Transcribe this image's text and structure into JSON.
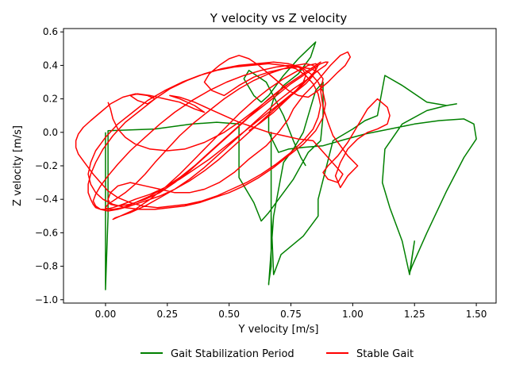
{
  "chart_data": {
    "type": "line",
    "title": "Y velocity vs Z velocity",
    "xlabel": "Y velocity [m/s]",
    "ylabel": "Z velocity [m/s]",
    "xlim": [
      -0.17,
      1.58
    ],
    "ylim": [
      -1.02,
      0.62
    ],
    "xticks": [
      0.0,
      0.25,
      0.5,
      0.75,
      1.0,
      1.25,
      1.5
    ],
    "xtick_labels": [
      "0.00",
      "0.25",
      "0.50",
      "0.75",
      "1.00",
      "1.25",
      "1.50"
    ],
    "yticks": [
      -1.0,
      -0.8,
      -0.6,
      -0.4,
      -0.2,
      0.0,
      0.2,
      0.4,
      0.6
    ],
    "ytick_labels": [
      "−1.0",
      "−0.8",
      "−0.6",
      "−0.4",
      "−0.2",
      "0.0",
      "0.2",
      "0.4",
      "0.6"
    ],
    "grid": false,
    "legend_position": "bottom-center",
    "series": [
      {
        "name": "Gait Stabilization Period",
        "color": "#008000",
        "x": [
          0.0,
          0.0,
          0.0,
          0.01,
          0.01,
          0.01,
          0.2,
          0.35,
          0.45,
          0.54,
          0.54,
          0.6,
          0.63,
          0.66,
          0.7,
          0.76,
          0.82,
          0.87,
          0.88,
          0.88,
          0.85,
          0.82,
          0.8,
          0.76,
          0.72,
          0.68,
          0.66,
          0.66,
          0.67,
          0.67,
          0.67,
          0.68,
          0.71,
          0.8,
          0.86,
          0.86,
          0.92,
          1.0,
          1.05,
          1.1,
          1.13,
          1.2,
          1.3,
          1.38,
          1.42,
          1.38,
          1.3,
          1.2,
          1.13,
          1.12,
          1.15,
          1.2,
          1.23,
          1.25,
          1.23,
          1.24,
          1.3,
          1.38,
          1.45,
          1.5,
          1.49,
          1.45,
          1.35,
          1.25,
          1.15,
          1.05,
          0.95,
          0.88,
          0.8,
          0.74,
          0.7,
          0.66,
          0.66,
          0.68,
          0.72,
          0.78,
          0.83,
          0.85,
          0.78,
          0.72,
          0.66,
          0.63,
          0.6,
          0.56,
          0.58,
          0.65,
          0.72,
          0.76,
          0.79,
          0.81
        ],
        "y": [
          0.0,
          -0.4,
          -0.94,
          -0.5,
          0.0,
          0.01,
          0.02,
          0.05,
          0.06,
          0.05,
          -0.27,
          -0.42,
          -0.53,
          -0.48,
          -0.4,
          -0.28,
          -0.12,
          -0.05,
          0.1,
          0.3,
          0.25,
          0.1,
          0.0,
          -0.1,
          -0.18,
          -0.5,
          -0.91,
          -0.9,
          -0.8,
          0.0,
          -0.5,
          -0.85,
          -0.73,
          -0.62,
          -0.5,
          -0.4,
          -0.05,
          0.02,
          0.07,
          0.1,
          0.34,
          0.28,
          0.18,
          0.16,
          0.17,
          0.16,
          0.13,
          0.05,
          -0.1,
          -0.3,
          -0.45,
          -0.65,
          -0.85,
          -0.65,
          -0.84,
          -0.8,
          -0.6,
          -0.35,
          -0.15,
          -0.04,
          0.05,
          0.08,
          0.07,
          0.05,
          0.02,
          -0.01,
          -0.05,
          -0.08,
          -0.09,
          -0.1,
          -0.12,
          0.0,
          0.1,
          0.2,
          0.28,
          0.35,
          0.45,
          0.54,
          0.44,
          0.34,
          0.22,
          0.18,
          0.22,
          0.32,
          0.37,
          0.3,
          0.1,
          -0.05,
          -0.15,
          -0.2
        ]
      },
      {
        "name": "Stable Gait",
        "color": "#ff0000",
        "x": [
          0.01,
          0.02,
          0.03,
          0.05,
          0.08,
          0.12,
          0.18,
          0.25,
          0.32,
          0.4,
          0.48,
          0.55,
          0.62,
          0.68,
          0.74,
          0.79,
          0.83,
          0.86,
          0.87,
          0.86,
          0.83,
          0.78,
          0.72,
          0.66,
          0.6,
          0.54,
          0.48,
          0.42,
          0.36,
          0.3,
          0.24,
          0.18,
          0.12,
          0.07,
          0.03,
          0.01,
          0.0,
          0.01,
          0.04,
          0.08,
          0.12,
          0.16,
          0.2,
          0.25,
          0.3,
          0.36,
          0.42,
          0.48,
          0.54,
          0.6,
          0.66,
          0.72,
          0.77,
          0.81,
          0.84,
          0.85,
          0.84,
          0.81,
          0.76,
          0.7,
          0.64,
          0.58,
          0.52,
          0.46,
          0.4,
          0.34,
          0.28,
          0.22,
          0.16,
          0.1,
          0.05,
          0.01,
          -0.02,
          -0.04,
          -0.05,
          -0.04,
          -0.02,
          0.01,
          0.05,
          0.1,
          0.16,
          0.22,
          0.28,
          0.35,
          0.42,
          0.49,
          0.56,
          0.63,
          0.69,
          0.74,
          0.78,
          0.8,
          0.81,
          0.8,
          0.77,
          0.72,
          0.66,
          0.6,
          0.54,
          0.48,
          0.42,
          0.36,
          0.3,
          0.24,
          0.18,
          0.12,
          0.07,
          0.03,
          0.0,
          -0.02,
          -0.04,
          -0.05,
          -0.06,
          -0.07,
          -0.07,
          -0.06,
          -0.04,
          -0.01,
          0.03,
          0.08,
          0.14,
          0.2,
          0.26,
          0.33,
          0.4,
          0.47,
          0.54,
          0.61,
          0.68,
          0.74,
          0.79,
          0.83,
          0.86,
          0.88,
          0.89,
          0.88,
          0.85,
          0.8,
          0.74,
          0.68,
          0.62,
          0.56,
          0.5,
          0.44,
          0.38,
          0.32,
          0.26,
          0.2,
          0.14,
          0.08,
          0.03,
          -0.01,
          -0.04,
          -0.06,
          -0.07,
          -0.06,
          -0.04,
          0.0,
          0.05,
          0.11,
          0.17,
          0.24,
          0.31,
          0.38,
          0.45,
          0.52,
          0.59,
          0.66,
          0.72,
          0.77,
          0.81,
          0.84,
          0.86,
          0.87,
          0.86,
          0.84,
          0.8,
          0.75,
          0.69,
          0.63,
          0.57,
          0.51,
          0.45,
          0.39,
          0.33,
          0.27,
          0.21,
          0.15,
          0.1,
          0.05,
          0.01,
          -0.02,
          -0.05,
          -0.07,
          -0.09,
          -0.11,
          -0.12,
          -0.12,
          -0.11,
          -0.09,
          -0.06,
          -0.02,
          0.02,
          0.07,
          0.12,
          0.17,
          0.2,
          0.17,
          0.13,
          0.1,
          0.13,
          0.18,
          0.24,
          0.3,
          0.36,
          0.4,
          0.36,
          0.3,
          0.26,
          0.3,
          0.36,
          0.42,
          0.48,
          0.54,
          0.6,
          0.66,
          0.72,
          0.78,
          0.84,
          0.9,
          0.96,
          0.94,
          0.9,
          0.88,
          0.9,
          0.94,
          0.98,
          1.02,
          1.06,
          1.1,
          1.14,
          1.15,
          1.14,
          1.1,
          1.06,
          1.02,
          0.98,
          0.95,
          0.93,
          0.95,
          0.98,
          1.02,
          0.98,
          0.95,
          0.92,
          0.9,
          0.88,
          0.87,
          0.88,
          0.86,
          0.83,
          0.78,
          0.72,
          0.66,
          0.6,
          0.54,
          0.48,
          0.43,
          0.4,
          0.42,
          0.46,
          0.5,
          0.54,
          0.58,
          0.62,
          0.66,
          0.7,
          0.74,
          0.78,
          0.82,
          0.86,
          0.9,
          0.94,
          0.97,
          0.99,
          0.98,
          0.95,
          0.91,
          0.87,
          0.84,
          0.82,
          0.8,
          0.78,
          0.76,
          0.74,
          0.7,
          0.65,
          0.58,
          0.52,
          0.46,
          0.4,
          0.34,
          0.28,
          0.22,
          0.16,
          0.1,
          0.05,
          0.02,
          0.01,
          0.02,
          0.05,
          0.1,
          0.16,
          0.22,
          0.28,
          0.34,
          0.4,
          0.46,
          0.52,
          0.58,
          0.64,
          0.7,
          0.75,
          0.8,
          0.84,
          0.87,
          0.89,
          0.9,
          0.89,
          0.86,
          0.82,
          0.76,
          0.7,
          0.64,
          0.58,
          0.52,
          0.46,
          0.4,
          0.34,
          0.28,
          0.22,
          0.16,
          0.1,
          0.04,
          0.03,
          0.06,
          0.12,
          0.18,
          0.24,
          0.3,
          0.36,
          0.42,
          0.48,
          0.54,
          0.6,
          0.66,
          0.72,
          0.78,
          0.82,
          0.85,
          0.86,
          0.85,
          0.82,
          0.78,
          0.73,
          0.68,
          0.63,
          0.58
        ],
        "y": [
          0.18,
          0.14,
          0.08,
          0.02,
          -0.03,
          -0.07,
          -0.1,
          -0.11,
          -0.1,
          -0.06,
          0.0,
          0.07,
          0.15,
          0.22,
          0.29,
          0.34,
          0.38,
          0.41,
          0.42,
          0.41,
          0.38,
          0.33,
          0.27,
          0.2,
          0.12,
          0.04,
          -0.04,
          -0.12,
          -0.2,
          -0.27,
          -0.33,
          -0.38,
          -0.42,
          -0.45,
          -0.46,
          -0.46,
          -0.45,
          -0.43,
          -0.4,
          -0.36,
          -0.31,
          -0.25,
          -0.18,
          -0.1,
          -0.02,
          0.06,
          0.13,
          0.2,
          0.26,
          0.31,
          0.35,
          0.38,
          0.4,
          0.41,
          0.4,
          0.38,
          0.34,
          0.29,
          0.23,
          0.16,
          0.08,
          0.0,
          -0.08,
          -0.16,
          -0.23,
          -0.29,
          -0.34,
          -0.38,
          -0.41,
          -0.44,
          -0.46,
          -0.47,
          -0.46,
          -0.44,
          -0.41,
          -0.37,
          -0.32,
          -0.26,
          -0.19,
          -0.11,
          -0.03,
          0.05,
          0.12,
          0.19,
          0.25,
          0.3,
          0.34,
          0.37,
          0.39,
          0.4,
          0.39,
          0.37,
          0.34,
          0.3,
          0.25,
          0.19,
          0.12,
          0.05,
          -0.02,
          -0.09,
          -0.16,
          -0.22,
          -0.28,
          -0.33,
          -0.37,
          -0.4,
          -0.43,
          -0.45,
          -0.46,
          -0.46,
          -0.45,
          -0.43,
          -0.4,
          -0.36,
          -0.31,
          -0.25,
          -0.18,
          -0.1,
          -0.02,
          0.06,
          0.13,
          0.2,
          0.26,
          0.31,
          0.35,
          0.38,
          0.4,
          0.41,
          0.42,
          0.41,
          0.39,
          0.35,
          0.3,
          0.24,
          0.17,
          0.09,
          0.01,
          -0.07,
          -0.14,
          -0.21,
          -0.27,
          -0.32,
          -0.36,
          -0.39,
          -0.42,
          -0.44,
          -0.45,
          -0.46,
          -0.46,
          -0.45,
          -0.43,
          -0.4,
          -0.36,
          -0.31,
          -0.25,
          -0.18,
          -0.11,
          -0.03,
          0.05,
          0.12,
          0.19,
          0.25,
          0.3,
          0.34,
          0.37,
          0.39,
          0.4,
          0.41,
          0.4,
          0.38,
          0.34,
          0.29,
          0.23,
          0.16,
          0.09,
          0.02,
          -0.05,
          -0.12,
          -0.19,
          -0.25,
          -0.3,
          -0.34,
          -0.38,
          -0.41,
          -0.43,
          -0.44,
          -0.45,
          -0.44,
          -0.42,
          -0.39,
          -0.35,
          -0.3,
          -0.25,
          -0.21,
          -0.17,
          -0.13,
          -0.09,
          -0.05,
          -0.01,
          0.03,
          0.07,
          0.12,
          0.17,
          0.21,
          0.23,
          0.22,
          0.2,
          0.17,
          0.19,
          0.22,
          0.23,
          0.22,
          0.2,
          0.18,
          0.14,
          0.12,
          0.16,
          0.2,
          0.22,
          0.21,
          0.18,
          0.14,
          0.1,
          0.06,
          0.03,
          0.0,
          -0.02,
          -0.04,
          -0.05,
          -0.15,
          -0.25,
          -0.3,
          -0.28,
          -0.24,
          -0.2,
          -0.14,
          -0.06,
          0.04,
          0.14,
          0.2,
          0.15,
          0.1,
          0.05,
          0.02,
          0.0,
          -0.04,
          -0.1,
          -0.18,
          -0.26,
          -0.33,
          -0.26,
          -0.2,
          -0.14,
          -0.08,
          -0.02,
          0.06,
          0.15,
          0.25,
          0.32,
          0.36,
          0.38,
          0.39,
          0.38,
          0.36,
          0.33,
          0.28,
          0.22,
          0.25,
          0.3,
          0.35,
          0.4,
          0.44,
          0.46,
          0.44,
          0.4,
          0.35,
          0.3,
          0.25,
          0.22,
          0.21,
          0.25,
          0.3,
          0.36,
          0.4,
          0.45,
          0.48,
          0.46,
          0.4,
          0.33,
          0.28,
          0.25,
          0.22,
          0.18,
          0.14,
          0.08,
          0.0,
          -0.08,
          -0.16,
          -0.24,
          -0.3,
          -0.34,
          -0.36,
          -0.36,
          -0.34,
          -0.32,
          -0.3,
          -0.32,
          -0.36,
          -0.4,
          -0.43,
          -0.44,
          -0.43,
          -0.4,
          -0.36,
          -0.3,
          -0.23,
          -0.15,
          -0.07,
          0.01,
          0.09,
          0.16,
          0.23,
          0.29,
          0.34,
          0.38,
          0.41,
          0.42,
          0.42,
          0.4,
          0.37,
          0.32,
          0.26,
          0.19,
          0.11,
          0.03,
          -0.05,
          -0.13,
          -0.21,
          -0.28,
          -0.34,
          -0.39,
          -0.44,
          -0.48,
          -0.51,
          -0.52,
          -0.5,
          -0.46,
          -0.4,
          -0.33,
          -0.25,
          -0.16,
          -0.07,
          0.02,
          0.11,
          0.19,
          0.26,
          0.32,
          0.37,
          0.4,
          0.41,
          0.4,
          0.37,
          0.32,
          0.26,
          0.19,
          0.12,
          0.06,
          0.01
        ]
      }
    ]
  }
}
